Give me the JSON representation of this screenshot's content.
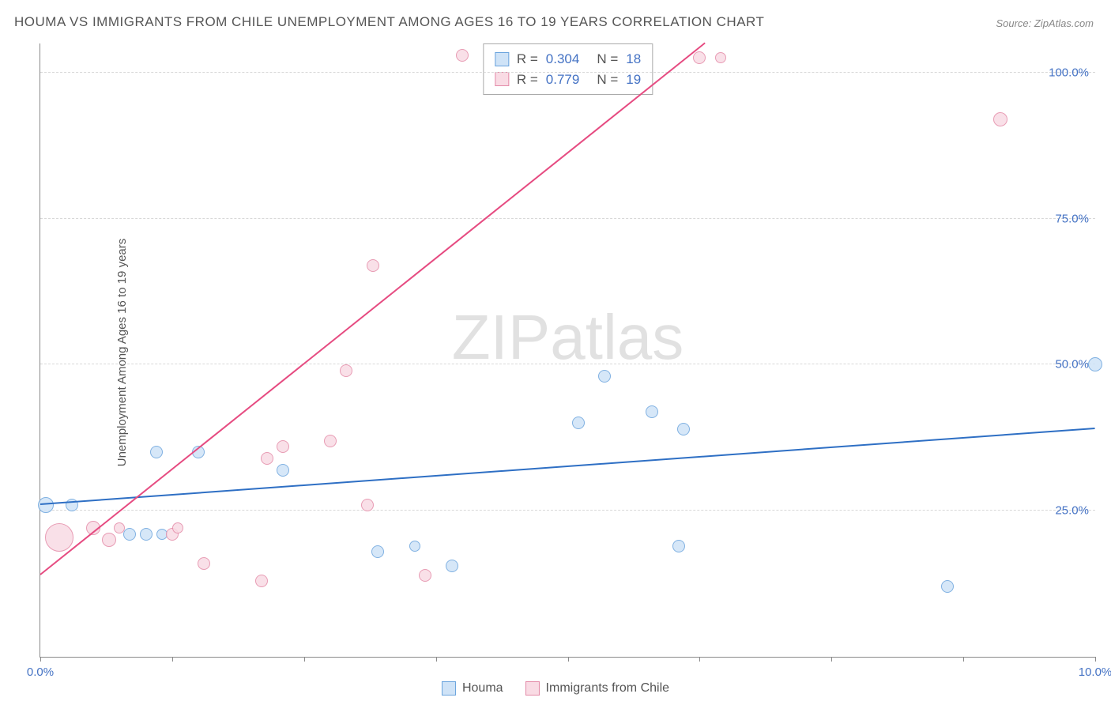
{
  "title": "HOUMA VS IMMIGRANTS FROM CHILE UNEMPLOYMENT AMONG AGES 16 TO 19 YEARS CORRELATION CHART",
  "source": "Source: ZipAtlas.com",
  "ylabel": "Unemployment Among Ages 16 to 19 years",
  "watermark_a": "ZIP",
  "watermark_b": "atlas",
  "chart": {
    "type": "scatter",
    "xlim": [
      0,
      10
    ],
    "ylim": [
      0,
      105
    ],
    "xtick_positions": [
      0,
      1.25,
      2.5,
      3.75,
      5,
      6.25,
      7.5,
      8.75,
      10
    ],
    "xtick_labels": {
      "0": "0.0%",
      "10": "10.0%"
    },
    "ytick_positions": [
      25,
      50,
      75,
      100
    ],
    "ytick_labels": [
      "25.0%",
      "50.0%",
      "75.0%",
      "100.0%"
    ],
    "grid_color": "#d8d8d8",
    "background_color": "#ffffff",
    "series": [
      {
        "name": "Houma",
        "color_fill": "#cfe3f7",
        "color_stroke": "#6ba4dd",
        "trend_color": "#2e6fc4",
        "R": "0.304",
        "N": "18",
        "trend": {
          "x1": 0,
          "y1": 26,
          "x2": 10,
          "y2": 39
        },
        "points": [
          {
            "x": 0.05,
            "y": 26,
            "r": 10
          },
          {
            "x": 0.3,
            "y": 26,
            "r": 8
          },
          {
            "x": 0.85,
            "y": 21,
            "r": 8
          },
          {
            "x": 1.0,
            "y": 21,
            "r": 8
          },
          {
            "x": 1.15,
            "y": 21,
            "r": 7
          },
          {
            "x": 1.1,
            "y": 35,
            "r": 8
          },
          {
            "x": 1.5,
            "y": 35,
            "r": 8
          },
          {
            "x": 2.3,
            "y": 32,
            "r": 8
          },
          {
            "x": 3.2,
            "y": 18,
            "r": 8
          },
          {
            "x": 3.55,
            "y": 19,
            "r": 7
          },
          {
            "x": 3.9,
            "y": 15.5,
            "r": 8
          },
          {
            "x": 5.1,
            "y": 40,
            "r": 8
          },
          {
            "x": 5.35,
            "y": 48,
            "r": 8
          },
          {
            "x": 5.8,
            "y": 42,
            "r": 8
          },
          {
            "x": 6.1,
            "y": 39,
            "r": 8
          },
          {
            "x": 6.05,
            "y": 19,
            "r": 8
          },
          {
            "x": 8.6,
            "y": 12,
            "r": 8
          },
          {
            "x": 10.0,
            "y": 50,
            "r": 9
          }
        ]
      },
      {
        "name": "Immigrants from Chile",
        "color_fill": "#f9dbe4",
        "color_stroke": "#e48ba8",
        "trend_color": "#e64b81",
        "R": "0.779",
        "N": "19",
        "trend": {
          "x1": 0,
          "y1": 14,
          "x2": 6.3,
          "y2": 105
        },
        "points": [
          {
            "x": 0.18,
            "y": 20.5,
            "r": 18
          },
          {
            "x": 0.5,
            "y": 22,
            "r": 9
          },
          {
            "x": 0.65,
            "y": 20,
            "r": 9
          },
          {
            "x": 0.75,
            "y": 22,
            "r": 7
          },
          {
            "x": 1.25,
            "y": 21,
            "r": 8
          },
          {
            "x": 1.3,
            "y": 22,
            "r": 7
          },
          {
            "x": 1.55,
            "y": 16,
            "r": 8
          },
          {
            "x": 2.1,
            "y": 13,
            "r": 8
          },
          {
            "x": 2.15,
            "y": 34,
            "r": 8
          },
          {
            "x": 2.3,
            "y": 36,
            "r": 8
          },
          {
            "x": 2.75,
            "y": 37,
            "r": 8
          },
          {
            "x": 2.9,
            "y": 49,
            "r": 8
          },
          {
            "x": 3.1,
            "y": 26,
            "r": 8
          },
          {
            "x": 3.15,
            "y": 67,
            "r": 8
          },
          {
            "x": 3.65,
            "y": 14,
            "r": 8
          },
          {
            "x": 4.0,
            "y": 103,
            "r": 8
          },
          {
            "x": 6.25,
            "y": 102.5,
            "r": 8
          },
          {
            "x": 6.45,
            "y": 102.5,
            "r": 7
          },
          {
            "x": 9.1,
            "y": 92,
            "r": 9
          }
        ]
      }
    ]
  },
  "legend": {
    "items": [
      {
        "label": "Houma",
        "fill": "#cfe3f7",
        "stroke": "#6ba4dd"
      },
      {
        "label": "Immigrants from Chile",
        "fill": "#f9dbe4",
        "stroke": "#e48ba8"
      }
    ]
  }
}
